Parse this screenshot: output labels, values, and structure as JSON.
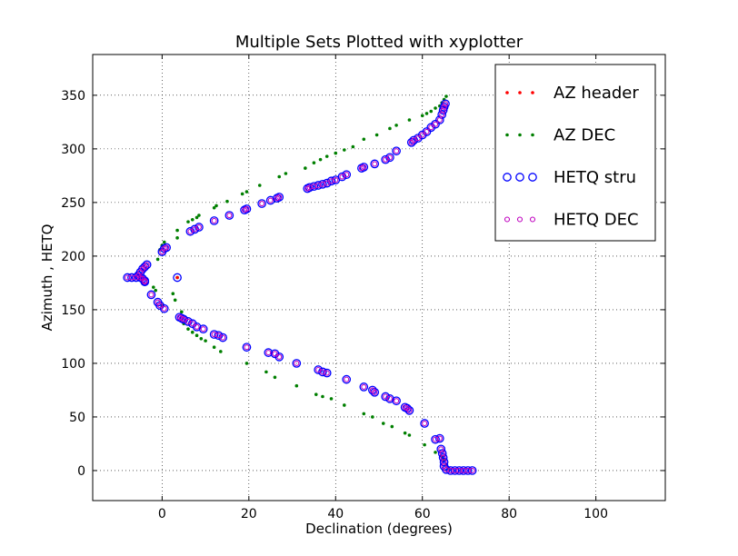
{
  "chart_data": {
    "type": "scatter",
    "title": "Multiple Sets Plotted with xyplotter",
    "xlabel": "Declination (degrees)",
    "ylabel": "Azimuth , HETQ",
    "xlim": [
      -16,
      116
    ],
    "ylim": [
      -28,
      388
    ],
    "xticks": [
      0,
      20,
      40,
      60,
      80,
      100
    ],
    "yticks": [
      0,
      50,
      100,
      150,
      200,
      250,
      300,
      350
    ],
    "grid": true,
    "legend_position": "top-right",
    "series": [
      {
        "name": "AZ header",
        "marker": "dot",
        "color": "#ff0000",
        "points": [
          [
            3.5,
            180
          ]
        ]
      },
      {
        "name": "AZ DEC",
        "marker": "dot",
        "color": "#007f00",
        "points": [
          [
            3.5,
            180
          ],
          [
            2.5,
            165
          ],
          [
            3.0,
            159
          ],
          [
            4.5,
            148
          ],
          [
            5.0,
            137
          ],
          [
            6.0,
            132
          ],
          [
            7.0,
            129
          ],
          [
            8.0,
            126
          ],
          [
            9.0,
            123
          ],
          [
            10.0,
            121
          ],
          [
            12.0,
            115
          ],
          [
            13.5,
            111
          ],
          [
            19.5,
            100
          ],
          [
            24.0,
            92
          ],
          [
            26.0,
            87
          ],
          [
            31.0,
            79
          ],
          [
            35.5,
            71
          ],
          [
            37.0,
            69
          ],
          [
            39.0,
            67
          ],
          [
            42.0,
            61
          ],
          [
            46.5,
            53
          ],
          [
            48.5,
            50
          ],
          [
            51.0,
            44
          ],
          [
            53.0,
            41
          ],
          [
            56.0,
            35
          ],
          [
            57.0,
            33
          ],
          [
            60.5,
            24
          ],
          [
            63.0,
            17
          ],
          [
            64.5,
            13
          ],
          [
            65.0,
            10
          ],
          [
            65.5,
            5
          ],
          [
            66.0,
            2
          ],
          [
            0,
            154
          ],
          [
            -1.5,
            168
          ],
          [
            -2.0,
            171
          ],
          [
            -1.0,
            197
          ],
          [
            -0.5,
            206
          ],
          [
            0,
            210
          ],
          [
            0.5,
            213
          ],
          [
            3.5,
            217
          ],
          [
            3.5,
            224
          ],
          [
            6.0,
            232
          ],
          [
            7.0,
            234
          ],
          [
            8.0,
            236
          ],
          [
            8.5,
            238
          ],
          [
            12.0,
            245
          ],
          [
            12.5,
            247
          ],
          [
            15.0,
            251
          ],
          [
            18.5,
            258
          ],
          [
            19.5,
            260
          ],
          [
            22.5,
            266
          ],
          [
            27.0,
            274
          ],
          [
            28.5,
            277
          ],
          [
            33.0,
            282
          ],
          [
            35.0,
            287
          ],
          [
            36.5,
            290
          ],
          [
            38.0,
            293
          ],
          [
            40.0,
            296
          ],
          [
            42.0,
            299
          ],
          [
            44.0,
            302
          ],
          [
            46.5,
            309
          ],
          [
            49.5,
            313
          ],
          [
            52.5,
            319
          ],
          [
            54.0,
            322
          ],
          [
            57.0,
            327
          ],
          [
            60.0,
            331
          ],
          [
            61.0,
            333
          ],
          [
            62.0,
            335
          ],
          [
            63.0,
            338
          ],
          [
            64.0,
            340
          ],
          [
            64.5,
            343
          ],
          [
            65.0,
            346
          ],
          [
            65.5,
            349
          ]
        ]
      },
      {
        "name": "HETQ stru",
        "marker": "circle-large",
        "color": "#0000ff",
        "points": [
          [
            71.5,
            0
          ],
          [
            70.5,
            0
          ],
          [
            69.5,
            0
          ],
          [
            68.5,
            0
          ],
          [
            67.5,
            0
          ],
          [
            66.5,
            0
          ],
          [
            65.5,
            1
          ],
          [
            65.0,
            4
          ],
          [
            65.0,
            8
          ],
          [
            64.8,
            12
          ],
          [
            64.6,
            16
          ],
          [
            64.3,
            20
          ],
          [
            64.0,
            30
          ],
          [
            63.0,
            29
          ],
          [
            60.5,
            44
          ],
          [
            57.0,
            56
          ],
          [
            56.5,
            58
          ],
          [
            56.0,
            59
          ],
          [
            54.0,
            65
          ],
          [
            52.5,
            67
          ],
          [
            51.5,
            69
          ],
          [
            49.0,
            73
          ],
          [
            48.5,
            75
          ],
          [
            46.5,
            78
          ],
          [
            42.5,
            85
          ],
          [
            38.0,
            91
          ],
          [
            37.0,
            92
          ],
          [
            36.0,
            94
          ],
          [
            31.0,
            100
          ],
          [
            27.0,
            106
          ],
          [
            26.0,
            109
          ],
          [
            24.5,
            110
          ],
          [
            19.5,
            115
          ],
          [
            14.0,
            124
          ],
          [
            13.0,
            126
          ],
          [
            12.0,
            127
          ],
          [
            9.5,
            132
          ],
          [
            8.0,
            134
          ],
          [
            7.0,
            137
          ],
          [
            6.0,
            139
          ],
          [
            5.0,
            141
          ],
          [
            4.5,
            142
          ],
          [
            4.0,
            143
          ],
          [
            0.5,
            151
          ],
          [
            -0.5,
            154
          ],
          [
            -1.0,
            157
          ],
          [
            -2.5,
            164
          ],
          [
            -4.0,
            176
          ],
          [
            -4.0,
            177
          ],
          [
            -4.5,
            179
          ],
          [
            -5.0,
            180
          ],
          [
            -6.0,
            180
          ],
          [
            -7.0,
            180
          ],
          [
            -8.0,
            180
          ],
          [
            -5.5,
            182
          ],
          [
            -5.0,
            185
          ],
          [
            -4.5,
            188
          ],
          [
            -4.0,
            190
          ],
          [
            -3.5,
            192
          ],
          [
            3.5,
            180
          ],
          [
            0,
            204
          ],
          [
            0.5,
            207
          ],
          [
            1.0,
            208
          ],
          [
            6.5,
            223
          ],
          [
            7.5,
            225
          ],
          [
            8.5,
            227
          ],
          [
            12.0,
            233
          ],
          [
            15.5,
            238
          ],
          [
            19.0,
            243
          ],
          [
            19.5,
            244
          ],
          [
            23.0,
            249
          ],
          [
            25.0,
            252
          ],
          [
            26.5,
            254
          ],
          [
            27.0,
            255
          ],
          [
            33.5,
            263
          ],
          [
            34.0,
            264
          ],
          [
            35.0,
            265
          ],
          [
            36.0,
            266
          ],
          [
            37.0,
            267
          ],
          [
            38.0,
            268
          ],
          [
            39.0,
            270
          ],
          [
            40.0,
            271
          ],
          [
            41.5,
            274
          ],
          [
            42.5,
            276
          ],
          [
            46.0,
            282
          ],
          [
            46.5,
            283
          ],
          [
            49.0,
            286
          ],
          [
            51.5,
            290
          ],
          [
            52.5,
            292
          ],
          [
            54.0,
            298
          ],
          [
            57.5,
            306
          ],
          [
            58.0,
            308
          ],
          [
            59.0,
            310
          ],
          [
            60.0,
            313
          ],
          [
            61.0,
            316
          ],
          [
            62.0,
            320
          ],
          [
            63.0,
            323
          ],
          [
            64.0,
            327
          ],
          [
            64.5,
            332
          ],
          [
            64.8,
            336
          ],
          [
            65.0,
            339
          ],
          [
            65.3,
            342
          ]
        ]
      },
      {
        "name": "HETQ DEC",
        "marker": "circle-small",
        "color": "#bf00bf",
        "points": [
          [
            71.5,
            0
          ],
          [
            70.5,
            0
          ],
          [
            69.5,
            0
          ],
          [
            68.5,
            0
          ],
          [
            67.5,
            0
          ],
          [
            66.5,
            0
          ],
          [
            65.5,
            1
          ],
          [
            65.0,
            4
          ],
          [
            65.0,
            8
          ],
          [
            64.8,
            12
          ],
          [
            64.6,
            16
          ],
          [
            64.3,
            20
          ],
          [
            64.0,
            30
          ],
          [
            63.0,
            29
          ],
          [
            60.5,
            44
          ],
          [
            57.0,
            56
          ],
          [
            56.5,
            58
          ],
          [
            56.0,
            59
          ],
          [
            54.0,
            65
          ],
          [
            52.5,
            67
          ],
          [
            51.5,
            69
          ],
          [
            49.0,
            73
          ],
          [
            48.5,
            75
          ],
          [
            46.5,
            78
          ],
          [
            42.5,
            85
          ],
          [
            38.0,
            91
          ],
          [
            37.0,
            92
          ],
          [
            36.0,
            94
          ],
          [
            31.0,
            100
          ],
          [
            27.0,
            106
          ],
          [
            26.0,
            109
          ],
          [
            24.5,
            110
          ],
          [
            19.5,
            115
          ],
          [
            14.0,
            124
          ],
          [
            13.0,
            126
          ],
          [
            12.0,
            127
          ],
          [
            9.5,
            132
          ],
          [
            8.0,
            134
          ],
          [
            7.0,
            137
          ],
          [
            6.0,
            139
          ],
          [
            5.0,
            141
          ],
          [
            4.5,
            142
          ],
          [
            4.0,
            143
          ],
          [
            0.5,
            151
          ],
          [
            -0.5,
            154
          ],
          [
            -1.0,
            157
          ],
          [
            -2.5,
            164
          ],
          [
            -4.0,
            176
          ],
          [
            -4.0,
            177
          ],
          [
            -4.5,
            179
          ],
          [
            -5.0,
            180
          ],
          [
            -6.0,
            180
          ],
          [
            -7.0,
            180
          ],
          [
            -8.0,
            180
          ],
          [
            -5.5,
            182
          ],
          [
            -5.0,
            185
          ],
          [
            -4.5,
            188
          ],
          [
            -4.0,
            190
          ],
          [
            -3.5,
            192
          ],
          [
            0,
            204
          ],
          [
            0.5,
            207
          ],
          [
            1.0,
            208
          ],
          [
            6.5,
            223
          ],
          [
            7.5,
            225
          ],
          [
            8.5,
            227
          ],
          [
            12.0,
            233
          ],
          [
            15.5,
            238
          ],
          [
            19.0,
            243
          ],
          [
            19.5,
            244
          ],
          [
            23.0,
            249
          ],
          [
            25.0,
            252
          ],
          [
            26.5,
            254
          ],
          [
            27.0,
            255
          ],
          [
            33.5,
            263
          ],
          [
            34.0,
            264
          ],
          [
            35.0,
            265
          ],
          [
            36.0,
            266
          ],
          [
            37.0,
            267
          ],
          [
            38.0,
            268
          ],
          [
            39.0,
            270
          ],
          [
            40.0,
            271
          ],
          [
            41.5,
            274
          ],
          [
            42.5,
            276
          ],
          [
            46.0,
            282
          ],
          [
            46.5,
            283
          ],
          [
            49.0,
            286
          ],
          [
            51.5,
            290
          ],
          [
            52.5,
            292
          ],
          [
            54.0,
            298
          ],
          [
            57.5,
            306
          ],
          [
            58.0,
            308
          ],
          [
            59.0,
            310
          ],
          [
            60.0,
            313
          ],
          [
            61.0,
            316
          ],
          [
            62.0,
            320
          ],
          [
            63.0,
            323
          ],
          [
            64.0,
            327
          ],
          [
            64.5,
            332
          ],
          [
            64.8,
            336
          ],
          [
            65.0,
            339
          ],
          [
            65.3,
            342
          ]
        ]
      }
    ]
  }
}
